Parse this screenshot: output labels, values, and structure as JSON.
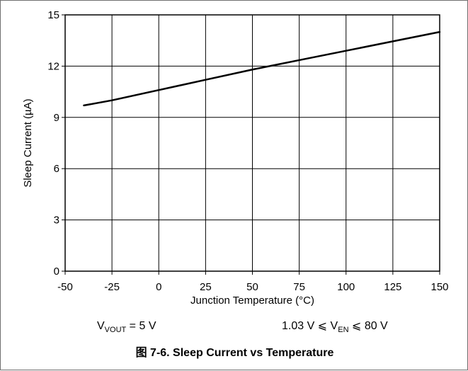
{
  "chart_data": {
    "type": "line",
    "title": "",
    "xlabel": "Junction Temperature (°C)",
    "ylabel": "Sleep Current (µA)",
    "xlim": [
      -50,
      150
    ],
    "ylim": [
      0,
      15
    ],
    "xticks": [
      -50,
      -25,
      0,
      25,
      50,
      75,
      100,
      125,
      150
    ],
    "yticks": [
      0,
      3,
      6,
      9,
      12,
      15
    ],
    "xtick_labels": [
      "-50",
      "-25",
      "0",
      "25",
      "50",
      "75",
      "100",
      "125",
      "150"
    ],
    "ytick_labels": [
      "0",
      "3",
      "6",
      "9",
      "12",
      "15"
    ],
    "grid": true,
    "legend": "none",
    "series": [
      {
        "x": [
          -40,
          -25,
          0,
          25,
          50,
          75,
          100,
          125,
          150
        ],
        "values": [
          9.7,
          10.0,
          10.6,
          11.2,
          11.8,
          12.35,
          12.9,
          13.45,
          14.0
        ],
        "color": "#000000"
      }
    ]
  },
  "conditions": {
    "left": {
      "prefix": "V",
      "subscript": "VOUT",
      "suffix": " = 5 V"
    },
    "right": {
      "prefix": "1.03 V ⩽ V",
      "subscript": "EN",
      "suffix": " ⩽ 80 V"
    }
  },
  "caption": "图 7-6. Sleep Current vs Temperature",
  "colors": {
    "axis": "#000000",
    "grid": "#000000",
    "line": "#000000",
    "frame": "#6f6f6f"
  }
}
